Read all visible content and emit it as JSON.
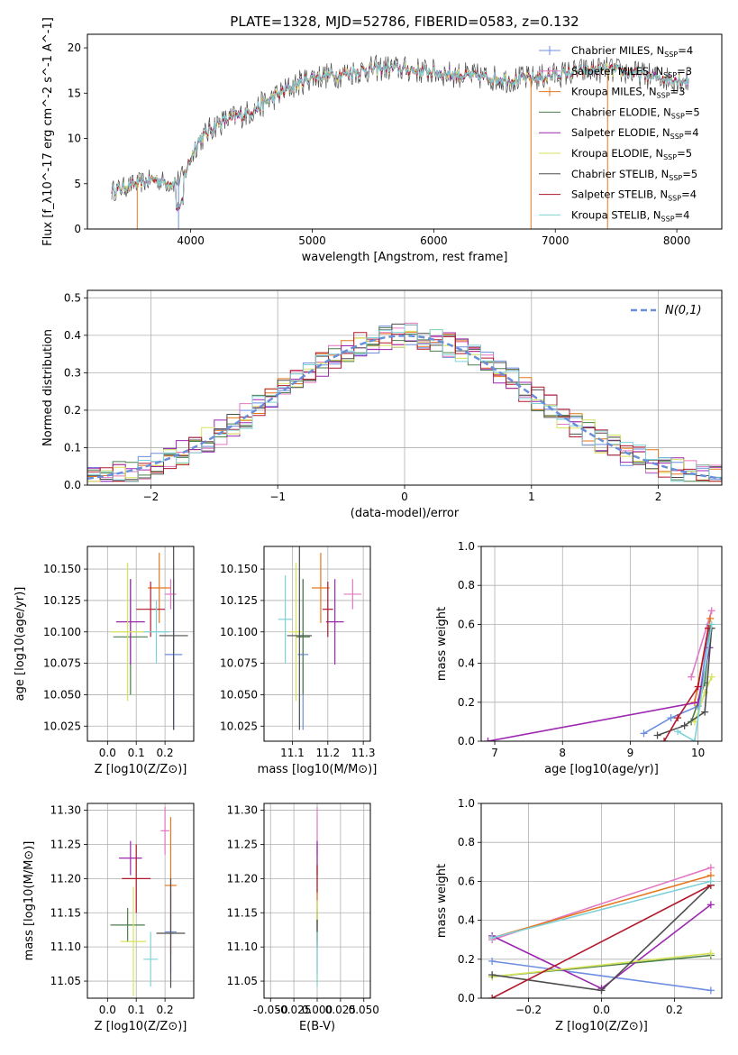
{
  "title": "PLATE=1328, MJD=52786, FIBERID=0583, z=0.132",
  "chart_data": [
    {
      "id": "spectrum",
      "type": "line",
      "xlabel": "wavelength [Angstrom, rest frame]",
      "ylabel": "Flux [f_λ10^-17 erg cm^-2 s^-1 A^-1]",
      "xlim": [
        3150,
        8370
      ],
      "ylim": [
        0,
        21.5
      ],
      "xticks": [
        4000,
        5000,
        6000,
        7000,
        8000
      ],
      "yticks": [
        0,
        5,
        10,
        15,
        20
      ],
      "grid": false,
      "legend_position": "right",
      "series": [
        {
          "name": "Chabrier MILES, N_SSP=4",
          "color": "#6c8ee0"
        },
        {
          "name": "Salpeter MILES, N_SSP=3",
          "color": "#e377c2"
        },
        {
          "name": "Kroupa MILES, N_SSP=3",
          "color": "#e6761d"
        },
        {
          "name": "Chabrier ELODIE, N_SSP=5",
          "color": "#4a7f4a"
        },
        {
          "name": "Salpeter ELODIE, N_SSP=4",
          "color": "#9c27b0"
        },
        {
          "name": "Kroupa ELODIE, N_SSP=5",
          "color": "#d7e35a"
        },
        {
          "name": "Chabrier STELIB, N_SSP=5",
          "color": "#4d4d4d"
        },
        {
          "name": "Salpeter STELIB, N_SSP=4",
          "color": "#b2182b"
        },
        {
          "name": "Kroupa STELIB, N_SSP=4",
          "color": "#7fd1d8"
        }
      ],
      "continuum": [
        [
          3350,
          4.2
        ],
        [
          3500,
          4.8
        ],
        [
          3700,
          5.5
        ],
        [
          3850,
          5.0
        ],
        [
          3950,
          6.0
        ],
        [
          4050,
          9.5
        ],
        [
          4200,
          11.5
        ],
        [
          4500,
          13.0
        ],
        [
          4800,
          15.5
        ],
        [
          5000,
          16.8
        ],
        [
          5200,
          17.0
        ],
        [
          5400,
          17.5
        ],
        [
          5600,
          17.8
        ],
        [
          5800,
          17.6
        ],
        [
          6000,
          17.3
        ],
        [
          6200,
          17.0
        ],
        [
          6400,
          16.8
        ],
        [
          6600,
          16.5
        ],
        [
          6800,
          16.6
        ],
        [
          7000,
          17.0
        ],
        [
          7200,
          17.4
        ],
        [
          7400,
          17.6
        ],
        [
          7600,
          17.3
        ],
        [
          7800,
          16.8
        ],
        [
          8000,
          16.5
        ],
        [
          8100,
          16.4
        ]
      ]
    },
    {
      "id": "residuals",
      "type": "line",
      "xlabel": "(data-model)/error",
      "ylabel": "Normed distribution",
      "xlim": [
        -2.5,
        2.5
      ],
      "ylim": [
        0,
        0.52
      ],
      "xticks": [
        -2,
        -1,
        0,
        1,
        2
      ],
      "yticks": [
        0.0,
        0.1,
        0.2,
        0.3,
        0.4,
        0.5
      ],
      "grid": true,
      "legend": "N(0,1)",
      "legend_position": "top-right",
      "gaussian_color": "#6a8fd8"
    },
    {
      "id": "age_vs_Z",
      "type": "scatter",
      "xlabel": "Z [log10(Z/Z⊙)]",
      "ylabel": "age  [log10(age/yr)]",
      "xlim": [
        -0.07,
        0.3
      ],
      "ylim": [
        10.013,
        10.168
      ],
      "xticks": [
        0.0,
        0.1,
        0.2
      ],
      "yticks": [
        10.025,
        10.05,
        10.075,
        10.1,
        10.125,
        10.15
      ],
      "grid": true,
      "points": [
        {
          "x": 0.23,
          "xe": 0.06,
          "y": 10.082,
          "ye": 0.06,
          "color": "#6c8ee0"
        },
        {
          "x": 0.22,
          "xe": 0.04,
          "y": 10.13,
          "ye": 0.012,
          "color": "#e377c2"
        },
        {
          "x": 0.18,
          "xe": 0.08,
          "y": 10.135,
          "ye": 0.028,
          "color": "#e6761d"
        },
        {
          "x": 0.08,
          "xe": 0.12,
          "y": 10.096,
          "ye": 0.046,
          "color": "#4a7f4a"
        },
        {
          "x": 0.08,
          "xe": 0.1,
          "y": 10.108,
          "ye": 0.034,
          "color": "#9c27b0"
        },
        {
          "x": 0.07,
          "xe": 0.12,
          "y": 10.1,
          "ye": 0.055,
          "color": "#d7e35a"
        },
        {
          "x": 0.23,
          "xe": 0.1,
          "y": 10.097,
          "ye": 0.075,
          "color": "#4d4d4d"
        },
        {
          "x": 0.15,
          "xe": 0.1,
          "y": 10.118,
          "ye": 0.022,
          "color": "#b2182b"
        },
        {
          "x": 0.17,
          "xe": 0.09,
          "y": 10.1,
          "ye": 0.025,
          "color": "#7fd1d8"
        }
      ]
    },
    {
      "id": "age_vs_mass",
      "type": "scatter",
      "xlabel": "mass [log10(M/M⊙)]",
      "ylabel": "",
      "xlim": [
        11.02,
        11.32
      ],
      "ylim": [
        10.013,
        10.168
      ],
      "xticks": [
        11.1,
        11.2,
        11.3
      ],
      "yticks": [
        10.025,
        10.05,
        10.075,
        10.1,
        10.125,
        10.15
      ],
      "grid": true,
      "points": [
        {
          "x": 11.13,
          "xe": 0.03,
          "y": 10.082,
          "ye": 0.06,
          "color": "#6c8ee0"
        },
        {
          "x": 11.27,
          "xe": 0.05,
          "y": 10.13,
          "ye": 0.012,
          "color": "#e377c2"
        },
        {
          "x": 11.18,
          "xe": 0.05,
          "y": 10.135,
          "ye": 0.028,
          "color": "#e6761d"
        },
        {
          "x": 11.13,
          "xe": 0.04,
          "y": 10.096,
          "ye": 0.046,
          "color": "#4a7f4a"
        },
        {
          "x": 11.22,
          "xe": 0.05,
          "y": 10.108,
          "ye": 0.034,
          "color": "#9c27b0"
        },
        {
          "x": 11.11,
          "xe": 0.04,
          "y": 10.1,
          "ye": 0.055,
          "color": "#d7e35a"
        },
        {
          "x": 11.12,
          "xe": 0.07,
          "y": 10.097,
          "ye": 0.075,
          "color": "#4d4d4d"
        },
        {
          "x": 11.2,
          "xe": 0.03,
          "y": 10.118,
          "ye": 0.022,
          "color": "#b2182b"
        },
        {
          "x": 11.08,
          "xe": 0.04,
          "y": 10.11,
          "ye": 0.035,
          "color": "#7fd1d8"
        }
      ]
    },
    {
      "id": "massweight_vs_age",
      "type": "line",
      "xlabel": "age  [log10(age/yr)]",
      "ylabel": "mass weight",
      "xlim": [
        6.8,
        10.35
      ],
      "ylim": [
        0,
        1.0
      ],
      "xticks": [
        7,
        8,
        9,
        10
      ],
      "yticks": [
        0.0,
        0.2,
        0.4,
        0.6,
        0.8,
        1.0
      ],
      "grid": true,
      "series": [
        {
          "color": "#6c8ee0",
          "points": [
            [
              9.2,
              0.04
            ],
            [
              9.6,
              0.12
            ],
            [
              10.0,
              0.18
            ],
            [
              10.17,
              0.6
            ]
          ]
        },
        {
          "color": "#e377c2",
          "points": [
            [
              9.9,
              0.33
            ],
            [
              10.2,
              0.67
            ]
          ]
        },
        {
          "color": "#e6761d",
          "points": [
            [
              9.95,
              0.2
            ],
            [
              10.18,
              0.63
            ]
          ]
        },
        {
          "color": "#4a7f4a",
          "points": [
            [
              9.9,
              0.1
            ],
            [
              10.1,
              0.3
            ],
            [
              10.18,
              0.58
            ]
          ]
        },
        {
          "color": "#9c27b0",
          "points": [
            [
              6.9,
              0.0
            ],
            [
              10.0,
              0.2
            ],
            [
              10.17,
              0.48
            ]
          ]
        },
        {
          "color": "#d7e35a",
          "points": [
            [
              9.95,
              0.1
            ],
            [
              10.1,
              0.25
            ],
            [
              10.2,
              0.33
            ]
          ]
        },
        {
          "color": "#4d4d4d",
          "points": [
            [
              9.4,
              0.03
            ],
            [
              9.8,
              0.08
            ],
            [
              10.1,
              0.15
            ],
            [
              10.2,
              0.58
            ]
          ]
        },
        {
          "color": "#b2182b",
          "points": [
            [
              9.5,
              0.0
            ],
            [
              9.7,
              0.12
            ],
            [
              10.0,
              0.28
            ],
            [
              10.15,
              0.58
            ]
          ]
        },
        {
          "color": "#7fd1d8",
          "points": [
            [
              9.7,
              0.05
            ],
            [
              9.95,
              0.0
            ],
            [
              10.2,
              0.6
            ]
          ]
        }
      ]
    },
    {
      "id": "mass_vs_Z",
      "type": "scatter",
      "xlabel": "Z [log10(Z/Z⊙)]",
      "ylabel": "mass [log10(M/M⊙)]",
      "xlim": [
        -0.07,
        0.3
      ],
      "ylim": [
        11.025,
        11.31
      ],
      "xticks": [
        0.0,
        0.1,
        0.2
      ],
      "yticks": [
        11.05,
        11.1,
        11.15,
        11.2,
        11.25,
        11.3
      ],
      "grid": true,
      "points": [
        {
          "x": 0.22,
          "xe": 0.04,
          "y": 11.122,
          "ye": 0.06,
          "color": "#6c8ee0"
        },
        {
          "x": 0.2,
          "xe": 0.03,
          "y": 11.27,
          "ye": 0.035,
          "color": "#e377c2"
        },
        {
          "x": 0.22,
          "xe": 0.04,
          "y": 11.19,
          "ye": 0.1,
          "color": "#e6761d"
        },
        {
          "x": 0.07,
          "xe": 0.12,
          "y": 11.132,
          "ye": 0.025,
          "color": "#4a7f4a"
        },
        {
          "x": 0.08,
          "xe": 0.08,
          "y": 11.23,
          "ye": 0.025,
          "color": "#9c27b0"
        },
        {
          "x": 0.09,
          "xe": 0.09,
          "y": 11.108,
          "ye": 0.08,
          "color": "#d7e35a"
        },
        {
          "x": 0.22,
          "xe": 0.1,
          "y": 11.12,
          "ye": 0.08,
          "color": "#4d4d4d"
        },
        {
          "x": 0.1,
          "xe": 0.1,
          "y": 11.2,
          "ye": 0.05,
          "color": "#b2182b"
        },
        {
          "x": 0.15,
          "xe": 0.05,
          "y": 11.082,
          "ye": 0.04,
          "color": "#7fd1d8"
        }
      ]
    },
    {
      "id": "mass_vs_EBV",
      "type": "scatter",
      "xlabel": "E(B-V)",
      "ylabel": "",
      "xlim": [
        -0.057,
        0.057
      ],
      "ylim": [
        11.025,
        11.31
      ],
      "xticks": [
        -0.05,
        -0.025,
        0.0,
        0.025,
        0.05
      ],
      "ytick_values": [
        11.05,
        11.1,
        11.15,
        11.2,
        11.25,
        11.3
      ],
      "grid": true,
      "points": [
        {
          "x": 0.0,
          "y": 11.122,
          "ye": 0.06,
          "color": "#6c8ee0"
        },
        {
          "x": 0.0,
          "y": 11.27,
          "ye": 0.035,
          "color": "#e377c2"
        },
        {
          "x": 0.0,
          "y": 11.19,
          "ye": 0.06,
          "color": "#e6761d"
        },
        {
          "x": 0.0,
          "y": 11.132,
          "ye": 0.025,
          "color": "#4a7f4a"
        },
        {
          "x": 0.0,
          "y": 11.23,
          "ye": 0.025,
          "color": "#9c27b0"
        },
        {
          "x": 0.0,
          "y": 11.108,
          "ye": 0.06,
          "color": "#d7e35a"
        },
        {
          "x": 0.0,
          "y": 11.12,
          "ye": 0.02,
          "color": "#4d4d4d"
        },
        {
          "x": 0.0,
          "y": 11.2,
          "ye": 0.02,
          "color": "#b2182b"
        },
        {
          "x": 0.0,
          "y": 11.082,
          "ye": 0.04,
          "color": "#7fd1d8"
        }
      ]
    },
    {
      "id": "massweight_vs_Z",
      "type": "line",
      "xlabel": "Z [log10(Z/Z⊙)]",
      "ylabel": "mass weight",
      "xlim": [
        -0.33,
        0.33
      ],
      "ylim": [
        0,
        1.0
      ],
      "xticks": [
        -0.2,
        0.0,
        0.2
      ],
      "yticks": [
        0.0,
        0.2,
        0.4,
        0.6,
        0.8,
        1.0
      ],
      "grid": true,
      "series": [
        {
          "color": "#6c8ee0",
          "points": [
            [
              -0.3,
              0.19
            ],
            [
              0.3,
              0.04
            ]
          ]
        },
        {
          "color": "#e377c2",
          "points": [
            [
              -0.3,
              0.3
            ],
            [
              0.3,
              0.67
            ]
          ]
        },
        {
          "color": "#e6761d",
          "points": [
            [
              -0.3,
              0.31
            ],
            [
              0.3,
              0.63
            ]
          ]
        },
        {
          "color": "#4a7f4a",
          "points": [
            [
              -0.3,
              0.11
            ],
            [
              0.3,
              0.22
            ]
          ]
        },
        {
          "color": "#9c27b0",
          "points": [
            [
              -0.3,
              0.32
            ],
            [
              0.0,
              0.05
            ],
            [
              0.3,
              0.48
            ]
          ]
        },
        {
          "color": "#d7e35a",
          "points": [
            [
              -0.3,
              0.11
            ],
            [
              0.3,
              0.23
            ]
          ]
        },
        {
          "color": "#4d4d4d",
          "points": [
            [
              -0.3,
              0.12
            ],
            [
              0.0,
              0.04
            ],
            [
              0.3,
              0.58
            ]
          ]
        },
        {
          "color": "#b2182b",
          "points": [
            [
              -0.3,
              0.0
            ],
            [
              0.3,
              0.58
            ]
          ]
        },
        {
          "color": "#7fd1d8",
          "points": [
            [
              -0.3,
              0.31
            ],
            [
              0.3,
              0.6
            ]
          ]
        }
      ]
    }
  ]
}
